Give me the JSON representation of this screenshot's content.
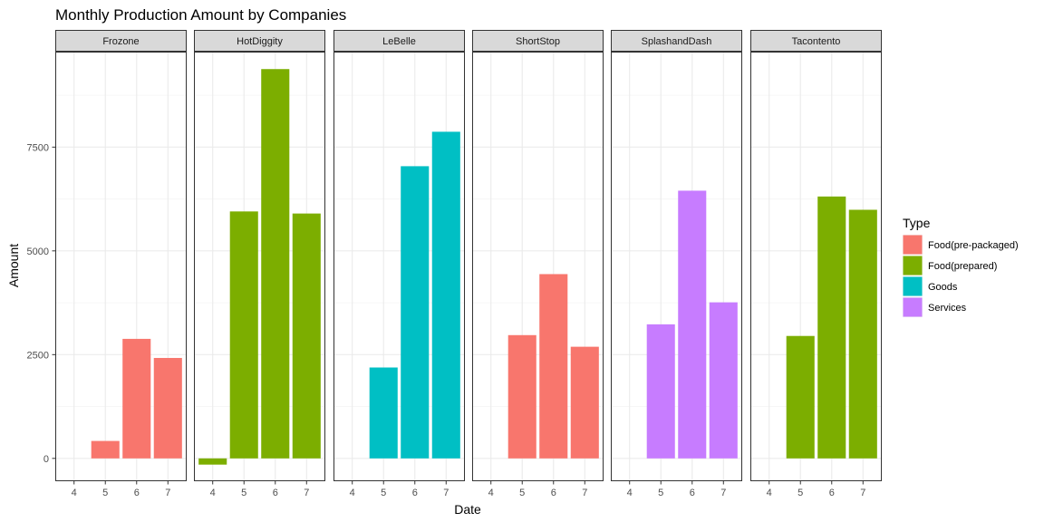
{
  "chart_data": {
    "type": "bar",
    "title": "Monthly Production Amount by Companies",
    "xlabel": "Date",
    "ylabel": "Amount",
    "x_categories": [
      "4",
      "5",
      "6",
      "7"
    ],
    "ylim": [
      -550,
      9800
    ],
    "y_ticks": [
      0,
      2500,
      5000,
      7500
    ],
    "y_tick_labels": [
      "0",
      "2500",
      "5000",
      "7500"
    ],
    "grid": true,
    "legend": {
      "title": "Type",
      "placement": "right",
      "entries": [
        {
          "label": "Food(pre-packaged)",
          "color": "#F8766D"
        },
        {
          "label": "Food(prepared)",
          "color": "#7CAE00"
        },
        {
          "label": "Goods",
          "color": "#00BFC4"
        },
        {
          "label": "Services",
          "color": "#C77CFF"
        }
      ]
    },
    "facets": [
      {
        "name": "Frozone",
        "type": "Food(pre-packaged)",
        "values": [
          null,
          420,
          2880,
          2420
        ]
      },
      {
        "name": "HotDiggity",
        "type": "Food(prepared)",
        "values": [
          -150,
          5950,
          9380,
          5900
        ]
      },
      {
        "name": "LeBelle",
        "type": "Goods",
        "values": [
          null,
          2190,
          7040,
          7870
        ]
      },
      {
        "name": "ShortStop",
        "type": "Food(pre-packaged)",
        "values": [
          null,
          2970,
          4440,
          2690
        ]
      },
      {
        "name": "SplashandDash",
        "type": "Services",
        "values": [
          null,
          3230,
          6450,
          3760
        ]
      },
      {
        "name": "Tacontento",
        "type": "Food(prepared)",
        "values": [
          null,
          2950,
          6310,
          5990
        ]
      }
    ]
  }
}
